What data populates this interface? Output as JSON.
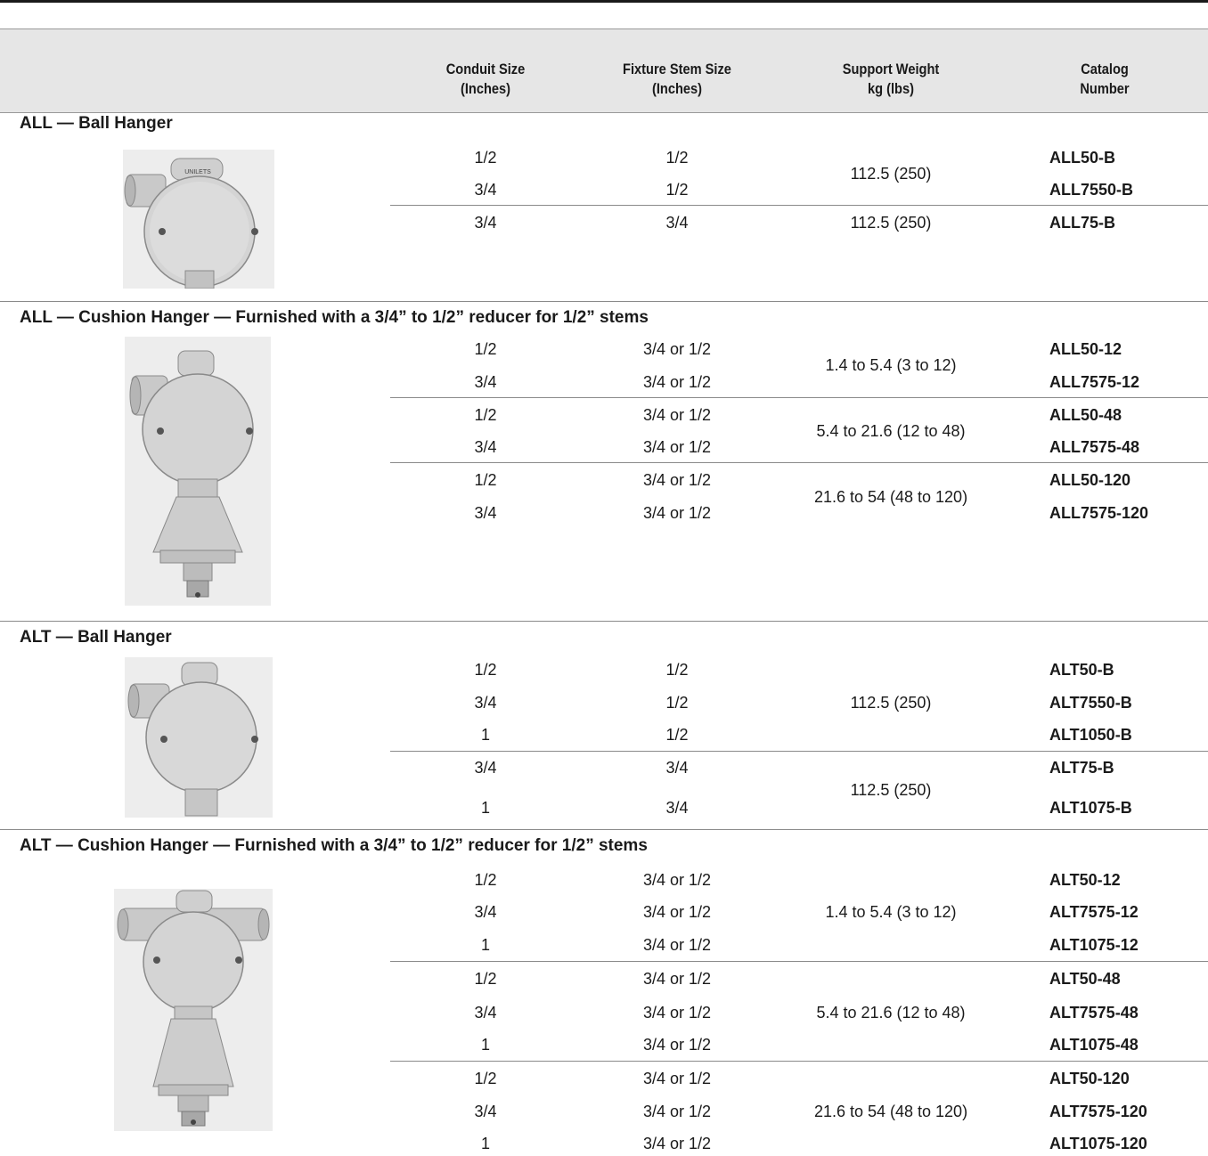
{
  "header": {
    "conduit": [
      "Conduit Size",
      "(Inches)"
    ],
    "stem": [
      "Fixture Stem Size",
      "(Inches)"
    ],
    "weight": [
      "Support Weight",
      "kg (lbs)"
    ],
    "catalog": [
      "Catalog",
      "Number"
    ]
  },
  "sections": [
    {
      "title": "ALL — Ball Hanger",
      "image": "ball-hanger-all",
      "rows": [
        {
          "conduit": "1/2",
          "stem": "1/2",
          "catalog": "ALL50-B"
        },
        {
          "conduit": "3/4",
          "stem": "1/2",
          "catalog": "ALL7550-B"
        },
        {
          "conduit": "3/4",
          "stem": "3/4",
          "catalog": "ALL75-B"
        }
      ],
      "weights": [
        "112.5 (250)",
        "112.5 (250)"
      ]
    },
    {
      "title": "ALL — Cushion Hanger — Furnished with a 3/4” to 1/2” reducer for 1/2” stems",
      "image": "cushion-hanger-all",
      "rows": [
        {
          "conduit": "1/2",
          "stem": "3/4 or 1/2",
          "catalog": "ALL50-12"
        },
        {
          "conduit": "3/4",
          "stem": "3/4 or 1/2",
          "catalog": "ALL7575-12"
        },
        {
          "conduit": "1/2",
          "stem": "3/4 or 1/2",
          "catalog": "ALL50-48"
        },
        {
          "conduit": "3/4",
          "stem": "3/4 or 1/2",
          "catalog": "ALL7575-48"
        },
        {
          "conduit": "1/2",
          "stem": "3/4 or 1/2",
          "catalog": "ALL50-120"
        },
        {
          "conduit": "3/4",
          "stem": "3/4 or 1/2",
          "catalog": "ALL7575-120"
        }
      ],
      "weights": [
        "1.4 to 5.4 (3 to 12)",
        "5.4 to 21.6 (12 to 48)",
        "21.6 to 54 (48 to 120)"
      ]
    },
    {
      "title": "ALT — Ball Hanger",
      "image": "ball-hanger-alt",
      "rows": [
        {
          "conduit": "1/2",
          "stem": "1/2",
          "catalog": "ALT50-B"
        },
        {
          "conduit": "3/4",
          "stem": "1/2",
          "catalog": "ALT7550-B"
        },
        {
          "conduit": "1",
          "stem": "1/2",
          "catalog": "ALT1050-B"
        },
        {
          "conduit": "3/4",
          "stem": "3/4",
          "catalog": "ALT75-B"
        },
        {
          "conduit": "1",
          "stem": "3/4",
          "catalog": "ALT1075-B"
        }
      ],
      "weights": [
        "112.5 (250)",
        "112.5 (250)"
      ]
    },
    {
      "title": "ALT — Cushion Hanger — Furnished with a 3/4” to 1/2” reducer for 1/2” stems",
      "image": "cushion-hanger-alt",
      "rows": [
        {
          "conduit": "1/2",
          "stem": "3/4 or 1/2",
          "catalog": "ALT50-12"
        },
        {
          "conduit": "3/4",
          "stem": "3/4 or 1/2",
          "catalog": "ALT7575-12"
        },
        {
          "conduit": "1",
          "stem": "3/4 or 1/2",
          "catalog": "ALT1075-12"
        },
        {
          "conduit": "1/2",
          "stem": "3/4 or 1/2",
          "catalog": "ALT50-48"
        },
        {
          "conduit": "3/4",
          "stem": "3/4 or 1/2",
          "catalog": "ALT7575-48"
        },
        {
          "conduit": "1",
          "stem": "3/4 or 1/2",
          "catalog": "ALT1075-48"
        },
        {
          "conduit": "1/2",
          "stem": "3/4 or 1/2",
          "catalog": "ALT50-120"
        },
        {
          "conduit": "3/4",
          "stem": "3/4 or 1/2",
          "catalog": "ALT7575-120"
        },
        {
          "conduit": "1",
          "stem": "3/4 or 1/2",
          "catalog": "ALT1075-120"
        }
      ],
      "weights": [
        "1.4 to 5.4 (3 to 12)",
        "5.4 to 21.6 (12 to 48)",
        "21.6 to 54 (48 to 120)"
      ]
    }
  ]
}
